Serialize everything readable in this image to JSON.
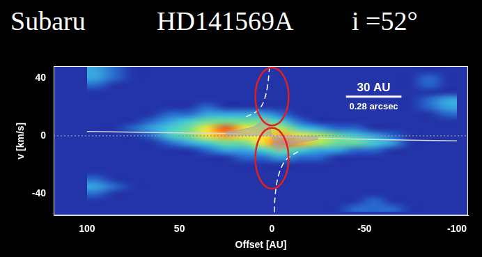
{
  "chart_data": {
    "type": "heatmap",
    "title": [
      "Subaru",
      "HD141569A",
      "i =52°"
    ],
    "x_label": "Offset [AU]",
    "y_label": "v [km/s]",
    "xlim": [
      118,
      -106
    ],
    "xticks": [
      100,
      50,
      0,
      -50,
      -100
    ],
    "ylim": [
      -55,
      48
    ],
    "yticks": [
      -40,
      0,
      40
    ],
    "grid": false,
    "x": [
      95,
      85,
      75,
      65,
      55,
      45,
      35,
      25,
      15,
      5,
      -5,
      -15,
      -25,
      -35,
      -45,
      -55,
      -65,
      -75,
      -85,
      -95
    ],
    "v": [
      45,
      40,
      35,
      30,
      25,
      20,
      15,
      10,
      5,
      0,
      -5,
      -10,
      -15,
      -20,
      -25,
      -30,
      -35,
      -40,
      -45,
      -50
    ],
    "cells": [
      [
        2,
        1,
        0,
        0,
        0,
        0,
        0,
        0,
        0,
        0,
        0,
        0,
        0,
        0,
        0,
        0,
        0,
        0,
        0,
        0
      ],
      [
        2,
        1,
        0,
        0,
        0,
        0,
        0,
        0,
        0,
        0,
        0,
        0,
        0,
        0,
        0,
        0,
        0,
        0,
        1,
        0
      ],
      [
        1,
        0,
        0,
        0,
        0,
        0,
        0,
        0,
        0,
        0,
        0,
        0,
        0,
        0,
        0,
        0,
        0,
        0,
        1,
        0
      ],
      [
        0,
        0,
        0,
        0,
        0,
        0,
        0,
        0,
        0,
        0,
        0,
        0,
        0,
        0,
        0,
        0,
        0,
        0,
        0,
        0
      ],
      [
        0,
        0,
        0,
        0,
        0,
        0,
        0,
        0,
        0,
        0,
        0,
        0,
        0,
        0,
        0,
        0,
        0,
        0,
        1,
        2
      ],
      [
        0,
        0,
        0,
        0,
        0,
        0,
        1,
        0,
        0,
        0,
        0,
        0,
        0,
        0,
        0,
        0,
        0,
        0,
        1,
        2
      ],
      [
        0,
        0,
        0,
        0,
        1,
        1,
        2,
        2,
        2,
        2,
        1,
        0,
        0,
        0,
        0,
        0,
        0,
        0,
        0,
        1
      ],
      [
        0,
        0,
        0,
        1,
        2,
        3,
        4,
        4,
        4,
        4,
        3,
        1,
        0,
        0,
        0,
        0,
        0,
        0,
        0,
        0
      ],
      [
        0,
        0,
        1,
        2,
        3,
        4,
        6,
        8,
        6,
        5,
        5,
        3,
        2,
        1,
        1,
        0,
        0,
        0,
        0,
        0
      ],
      [
        0,
        0,
        0,
        1,
        3,
        4,
        6,
        7,
        6,
        6,
        7,
        6,
        5,
        4,
        3,
        2,
        1,
        0,
        0,
        0
      ],
      [
        0,
        0,
        0,
        0,
        1,
        2,
        3,
        4,
        4,
        6,
        8,
        7,
        5,
        4,
        4,
        3,
        2,
        0,
        0,
        0
      ],
      [
        0,
        0,
        0,
        0,
        0,
        0,
        1,
        2,
        2,
        3,
        4,
        3,
        2,
        2,
        1,
        1,
        0,
        0,
        0,
        0
      ],
      [
        0,
        0,
        0,
        0,
        0,
        0,
        0,
        0,
        1,
        1,
        2,
        1,
        1,
        0,
        0,
        0,
        0,
        0,
        0,
        0
      ],
      [
        0,
        0,
        0,
        0,
        0,
        0,
        0,
        0,
        0,
        0,
        0,
        0,
        0,
        0,
        0,
        0,
        0,
        0,
        0,
        0
      ],
      [
        0,
        0,
        0,
        0,
        0,
        0,
        0,
        0,
        0,
        0,
        0,
        0,
        0,
        0,
        0,
        0,
        0,
        0,
        0,
        0
      ],
      [
        1,
        0,
        0,
        0,
        0,
        0,
        0,
        0,
        0,
        0,
        0,
        0,
        0,
        0,
        0,
        0,
        0,
        0,
        0,
        0
      ],
      [
        2,
        1,
        0,
        0,
        0,
        0,
        0,
        0,
        0,
        0,
        0,
        0,
        0,
        0,
        0,
        0,
        0,
        0,
        0,
        0
      ],
      [
        1,
        0,
        0,
        0,
        0,
        0,
        0,
        0,
        0,
        0,
        0,
        0,
        0,
        0,
        0,
        0,
        0,
        0,
        0,
        0
      ],
      [
        0,
        0,
        0,
        0,
        0,
        0,
        0,
        0,
        0,
        0,
        0,
        0,
        0,
        0,
        0,
        1,
        0,
        0,
        0,
        0
      ],
      [
        0,
        0,
        0,
        0,
        0,
        0,
        0,
        0,
        0,
        0,
        0,
        0,
        0,
        0,
        1,
        1,
        1,
        0,
        0,
        0
      ]
    ],
    "series": [
      {
        "x": [
          118,
          -106
        ],
        "values": [
          0,
          0
        ],
        "color": "#8890b0",
        "line_style": "dotted"
      },
      {
        "type": "area",
        "x": [
          25,
          10,
          3,
          0,
          -3,
          -10,
          -25
        ],
        "values": [
          2.5,
          6,
          12,
          0,
          -11,
          -6,
          -2.5
        ],
        "color": "#a8a8a8",
        "line_style": "solid"
      },
      {
        "x": [
          100,
          50,
          20,
          0,
          -20,
          -50,
          -100
        ],
        "values": [
          3,
          2,
          1.5,
          0,
          -1.5,
          -2.5,
          -3.5
        ],
        "color": "#d8d8d8",
        "line_style": "solid"
      },
      {
        "x": [
          14,
          8,
          5,
          3,
          2,
          1.5,
          1.2
        ],
        "values": [
          13,
          17,
          22,
          30,
          38,
          45,
          48
        ],
        "color": "#ffffff",
        "line_style": "dashed"
      },
      {
        "x": [
          -14,
          -8,
          -5,
          -3,
          -2,
          -1.5,
          -1.2
        ],
        "values": [
          -11,
          -16,
          -22,
          -30,
          -38,
          -45,
          -55
        ],
        "color": "#ffffff",
        "line_style": "dashed"
      }
    ],
    "ellipses": [
      {
        "x": 0,
        "v": 27,
        "rx": 9,
        "ry": 20,
        "color": "#e02020"
      },
      {
        "x": 0,
        "v": -15.5,
        "rx": 9,
        "ry": 21,
        "color": "#e02020"
      }
    ],
    "scale_bar": {
      "x": [
        -40,
        -70
      ],
      "v": 27,
      "color": "#ffffff"
    },
    "annotations": [
      {
        "text": "30 AU",
        "x": -55,
        "v": 33
      },
      {
        "text": "0.28 arcsec",
        "x": -55,
        "v": 20
      }
    ]
  }
}
